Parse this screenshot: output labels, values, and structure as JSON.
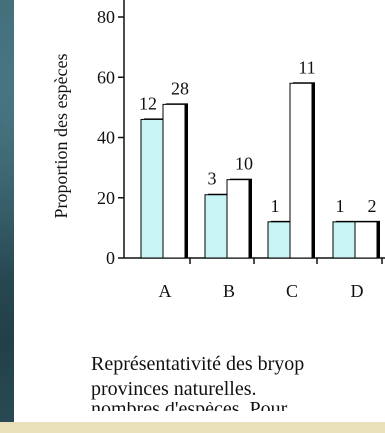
{
  "chart_data": {
    "type": "bar",
    "ylabel": "Proportion des espèces",
    "xlabel": "",
    "ylim": [
      0,
      80
    ],
    "yticks": [
      0,
      20,
      40,
      60,
      80
    ],
    "categories": [
      "A",
      "B",
      "C",
      "D"
    ],
    "series": [
      {
        "color": "#c8f4f6",
        "values": [
          46,
          21,
          12,
          12
        ],
        "labels": [
          "12",
          "3",
          "1",
          "1"
        ]
      },
      {
        "color": "#ffffff",
        "values": [
          51,
          26,
          58,
          12
        ],
        "labels": [
          "28",
          "10",
          "11",
          "2"
        ]
      }
    ],
    "grid": false,
    "legend": "none"
  },
  "caption": {
    "line1": "Représentativité des bryop",
    "line2": "provinces naturelles.",
    "line3": "nombres d'espèces. Pour"
  }
}
